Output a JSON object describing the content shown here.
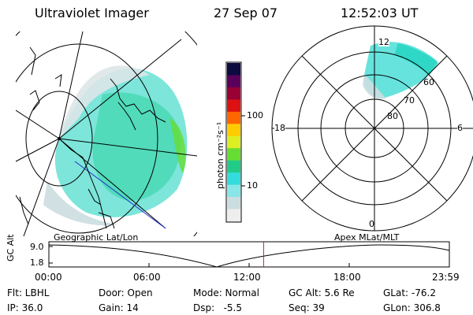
{
  "header": {
    "instrument": "Ultraviolet Imager",
    "date": "27 Sep 07",
    "time": "12:52:03 UT"
  },
  "left_map": {
    "caption": "Geographic Lat/Lon"
  },
  "right_map": {
    "caption": "Apex MLat/MLT",
    "lat_labels": [
      "60",
      "70",
      "80"
    ],
    "mlt_labels": {
      "top": "12",
      "left": "18",
      "right": "6",
      "bottom": "0"
    }
  },
  "colorbar": {
    "unit_label": "photon cm⁻²s⁻¹",
    "ticks": [
      "100",
      "10"
    ],
    "colors": [
      "#0b0b40",
      "#5a005a",
      "#990033",
      "#dd1111",
      "#ff6600",
      "#ffcc00",
      "#ddee22",
      "#66dd33",
      "#22cc88",
      "#33dddd",
      "#88e6e6",
      "#ccdde0",
      "#eeeeee"
    ]
  },
  "altitude_plot": {
    "axis_label": "GC Alt",
    "y_ticks": [
      "9.0",
      "1.8"
    ],
    "x_ticks": [
      "00:00",
      "06:00",
      "12:00",
      "18:00",
      "23:59"
    ],
    "marker_hour": 12.87
  },
  "info": {
    "flt": "Flt: LBHL",
    "ip": "IP: 36.0",
    "door": "Door: Open",
    "gain": "Gain: 14",
    "mode": "Mode: Normal",
    "dsp": "Dsp:   -5.5",
    "gc_alt": "GC Alt: 5.6 Re",
    "seq": "Seq: 39",
    "glat": "GLat: -76.2",
    "glon": "GLon: 306.8"
  }
}
